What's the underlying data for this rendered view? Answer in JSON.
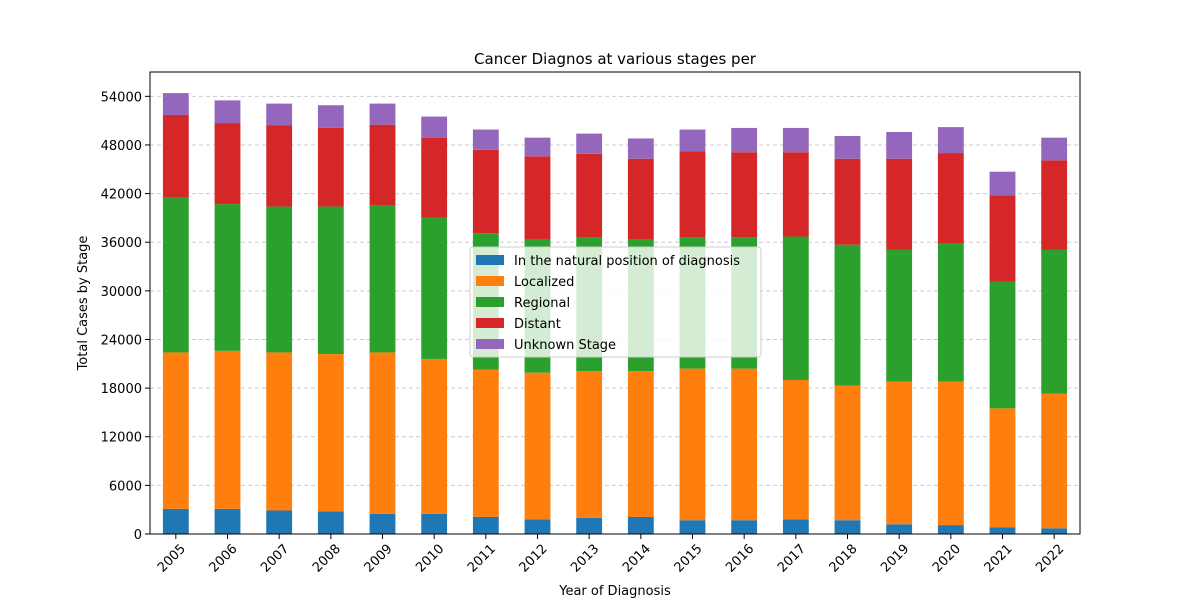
{
  "chart_data": {
    "type": "bar",
    "stacked": true,
    "title": "Cancer Diagnos at various stages per",
    "xlabel": "Year of Diagnosis",
    "ylabel": "Total Cases by Stage",
    "ylim": [
      0,
      57000
    ],
    "yticks": [
      "0",
      "6000",
      "12000",
      "18000",
      "24000",
      "30000",
      "36000",
      "42000",
      "48000",
      "54000"
    ],
    "grid": "y dashed",
    "legend_position": "center",
    "categories": [
      "2005",
      "2006",
      "2007",
      "2008",
      "2009",
      "2010",
      "2011",
      "2012",
      "2013",
      "2014",
      "2015",
      "2016",
      "2017",
      "2018",
      "2019",
      "2020",
      "2021",
      "2022"
    ],
    "series": [
      {
        "name": "In the natural position of diagnosis",
        "color": "#1f77b4",
        "values": [
          3100,
          3100,
          2900,
          2800,
          2500,
          2500,
          2100,
          1800,
          2000,
          2100,
          1700,
          1700,
          1800,
          1700,
          1200,
          1100,
          800,
          700
        ]
      },
      {
        "name": "Localized",
        "color": "#ff7f0e",
        "values": [
          19300,
          19500,
          19500,
          19400,
          19900,
          19100,
          18200,
          18100,
          18100,
          18000,
          18700,
          18700,
          17200,
          16600,
          17600,
          17700,
          14700,
          16600
        ]
      },
      {
        "name": "Regional",
        "color": "#2ca02c",
        "values": [
          19100,
          18100,
          18000,
          18200,
          18100,
          17400,
          16800,
          16500,
          16500,
          16200,
          16200,
          16200,
          17700,
          17400,
          16300,
          17000,
          15600,
          17800
        ]
      },
      {
        "name": "Distant",
        "color": "#d62728",
        "values": [
          10200,
          10000,
          10000,
          9700,
          10000,
          9900,
          10300,
          10200,
          10300,
          10000,
          10600,
          10500,
          10400,
          10600,
          11200,
          11200,
          10700,
          11000
        ]
      },
      {
        "name": "Unknown Stage",
        "color": "#9467bd",
        "values": [
          2700,
          2800,
          2700,
          2800,
          2600,
          2600,
          2500,
          2300,
          2500,
          2500,
          2700,
          3000,
          3000,
          2800,
          3300,
          3200,
          2900,
          2800
        ]
      }
    ]
  }
}
